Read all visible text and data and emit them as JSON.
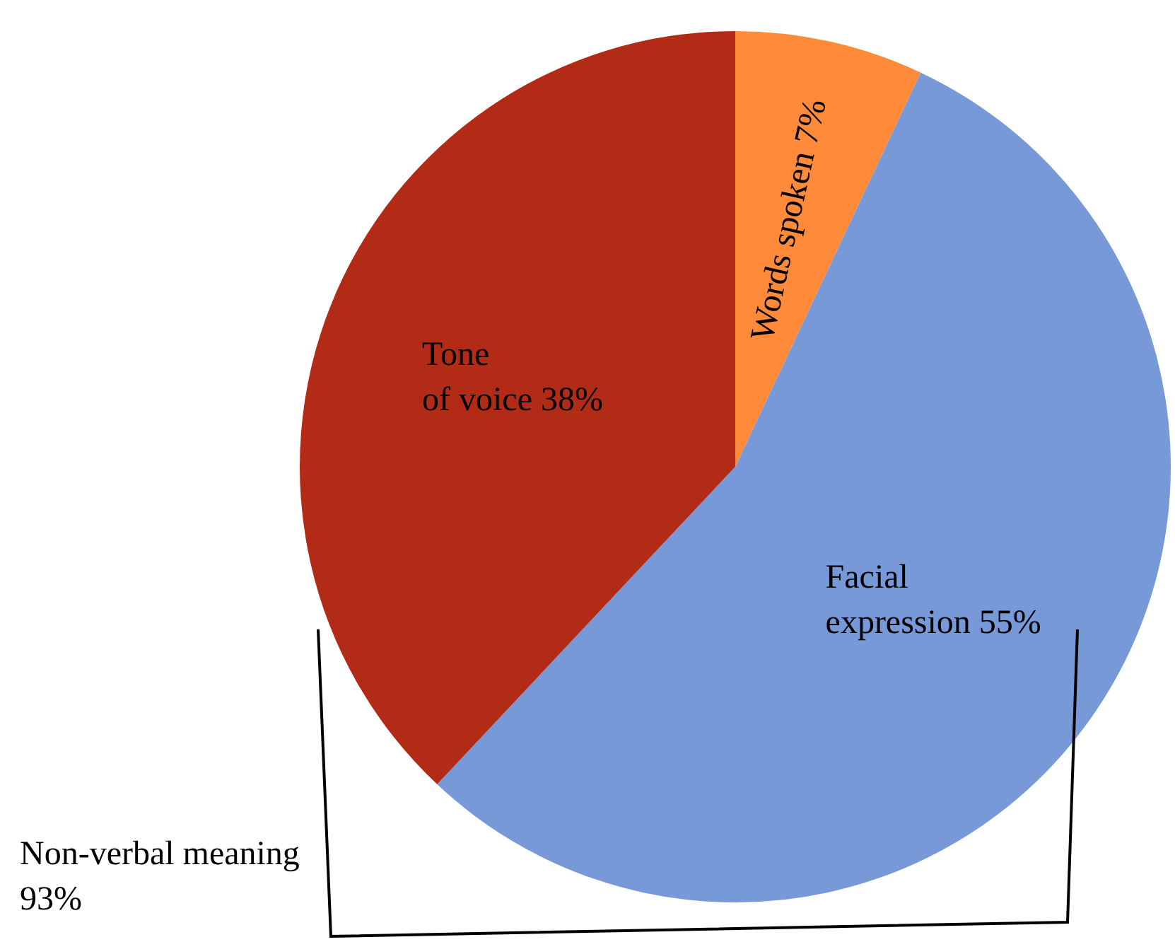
{
  "chart_data": {
    "type": "pie",
    "categories": [
      "Words spoken",
      "Facial expression",
      "Tone of voice"
    ],
    "values": [
      7,
      55,
      38
    ],
    "value_labels": [
      "7%",
      "55%",
      "38%"
    ],
    "colors": [
      "#fe8a3a",
      "#7799d8",
      "#b22b17"
    ],
    "legend": false,
    "annotations": [
      "Non-verbal meaning 93%"
    ]
  }
}
